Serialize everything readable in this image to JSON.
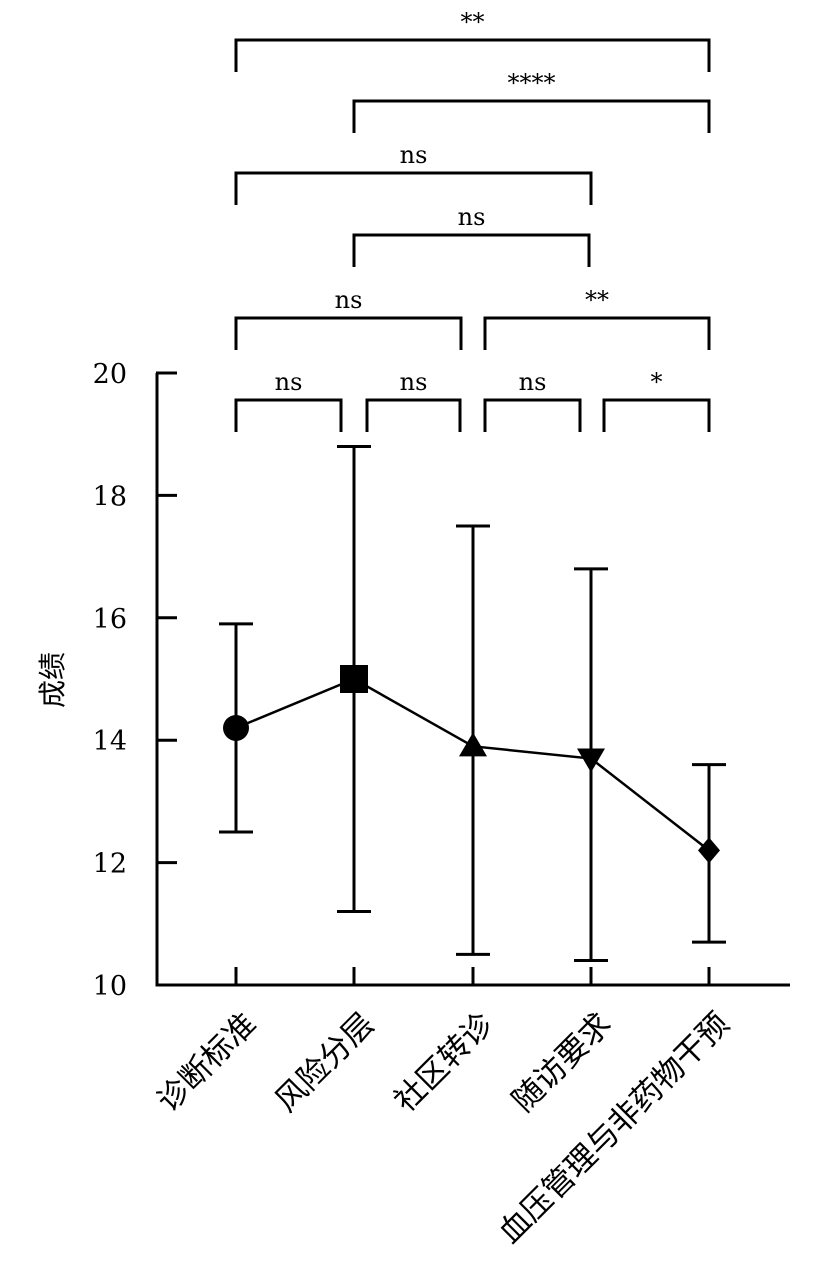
{
  "chart_data": {
    "type": "line",
    "title": "",
    "xlabel": "",
    "ylabel": "成绩",
    "ylim": [
      10,
      20
    ],
    "yticks": [
      10,
      12,
      14,
      16,
      18,
      20
    ],
    "categories": [
      "诊断标准",
      "风险分层",
      "社区转诊",
      "随访要求",
      "血压管理与非药物干预"
    ],
    "series": [
      {
        "values": [
          14.2,
          15.0,
          13.9,
          13.7,
          12.2
        ],
        "err_low": [
          12.5,
          11.2,
          10.5,
          10.4,
          10.7
        ],
        "err_high": [
          15.9,
          18.8,
          17.5,
          16.8,
          13.6
        ],
        "markers": [
          "circle",
          "square",
          "triangle-up",
          "triangle-down",
          "diamond"
        ]
      }
    ],
    "significance": [
      {
        "from": 0,
        "to": 4,
        "label": "**"
      },
      {
        "from": 1,
        "to": 4,
        "label": "****"
      },
      {
        "from": 0,
        "to": 3,
        "label": "ns"
      },
      {
        "from": 1,
        "to": 3,
        "label": "ns"
      },
      {
        "from": 0,
        "to": 2,
        "label": "ns"
      },
      {
        "from": 2,
        "to": 4,
        "label": "**"
      },
      {
        "from": 0,
        "to": 1,
        "label": "ns"
      },
      {
        "from": 1,
        "to": 2,
        "label": "ns"
      },
      {
        "from": 2,
        "to": 3,
        "label": "ns"
      },
      {
        "from": 3,
        "to": 4,
        "label": "*"
      }
    ],
    "grid": false,
    "legend": "none"
  }
}
